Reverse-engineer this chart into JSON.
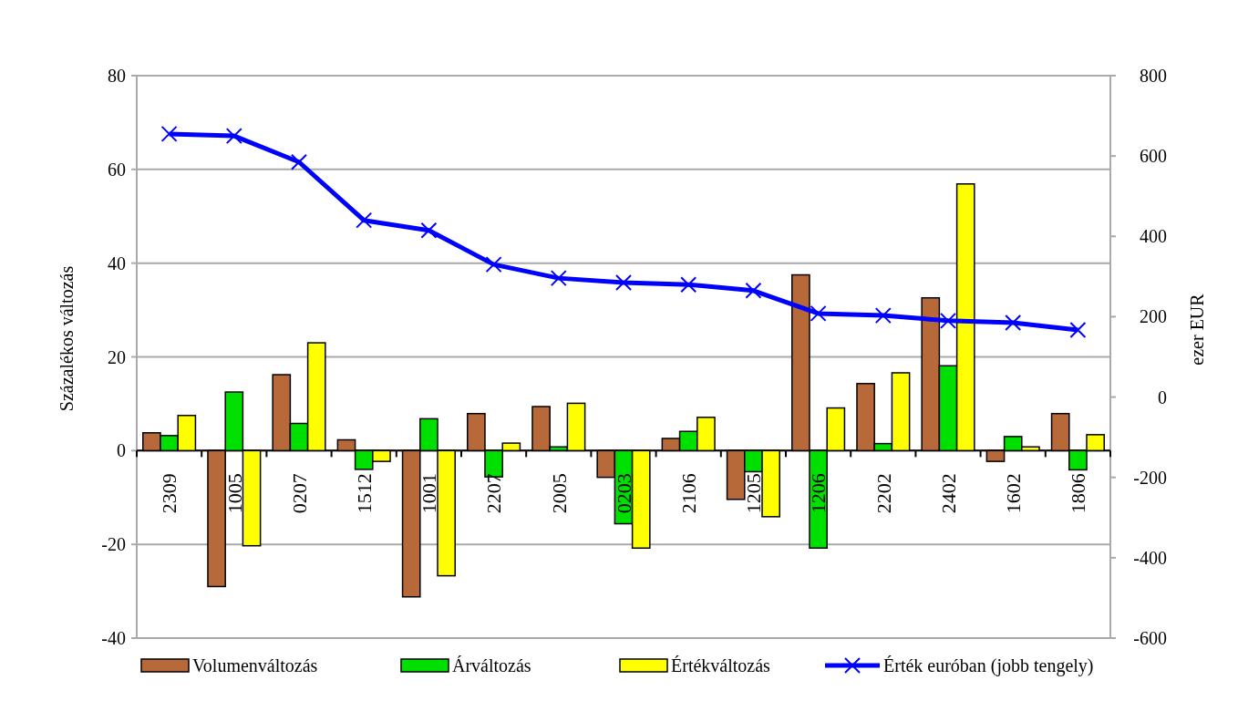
{
  "chart_data": {
    "type": "bar",
    "ylabel": "Százalékos változás",
    "y2label": "ezer EUR",
    "categories": [
      "2309",
      "1005",
      "0207",
      "1512",
      "1001",
      "2207",
      "2005",
      "0203",
      "2106",
      "1205",
      "1206",
      "2202",
      "2402",
      "1602",
      "1806"
    ],
    "series": [
      {
        "name": "Volumenváltozás",
        "color": "#b8693a",
        "values": [
          3.8,
          -29,
          16.2,
          2.3,
          -31.2,
          7.9,
          9.4,
          -5.7,
          2.6,
          -10.4,
          37.5,
          14.3,
          32.6,
          -2.3,
          7.9
        ]
      },
      {
        "name": "Árváltozás",
        "color": "#00e000",
        "values": [
          3.2,
          12.5,
          5.8,
          -4,
          6.8,
          -5.6,
          0.8,
          -15.6,
          4.1,
          -4.5,
          -20.8,
          1.5,
          18.1,
          3,
          -4.1
        ]
      },
      {
        "name": "Értékváltozás",
        "color": "#ffff00",
        "values": [
          7.5,
          -20.3,
          23,
          -2.3,
          -26.7,
          1.6,
          10.1,
          -20.8,
          7.1,
          -14.1,
          9.1,
          16.6,
          56.9,
          0.8,
          3.4
        ]
      },
      {
        "name": "Érték euróban (jobb tengely)",
        "color": "#0000ff",
        "type": "line",
        "axis": "y2",
        "marker": "cross",
        "values": [
          655,
          650,
          585,
          440,
          415,
          330,
          296,
          285,
          280,
          265,
          208,
          203,
          190,
          185,
          167
        ]
      }
    ],
    "ylim": [
      -40,
      80
    ],
    "yticks": [
      -40,
      -20,
      0,
      20,
      40,
      60,
      80
    ],
    "y2lim": [
      -600,
      800
    ],
    "y2ticks": [
      -600,
      -400,
      -200,
      0,
      200,
      400,
      600,
      800
    ],
    "grid": "y",
    "legend": "bottom"
  }
}
